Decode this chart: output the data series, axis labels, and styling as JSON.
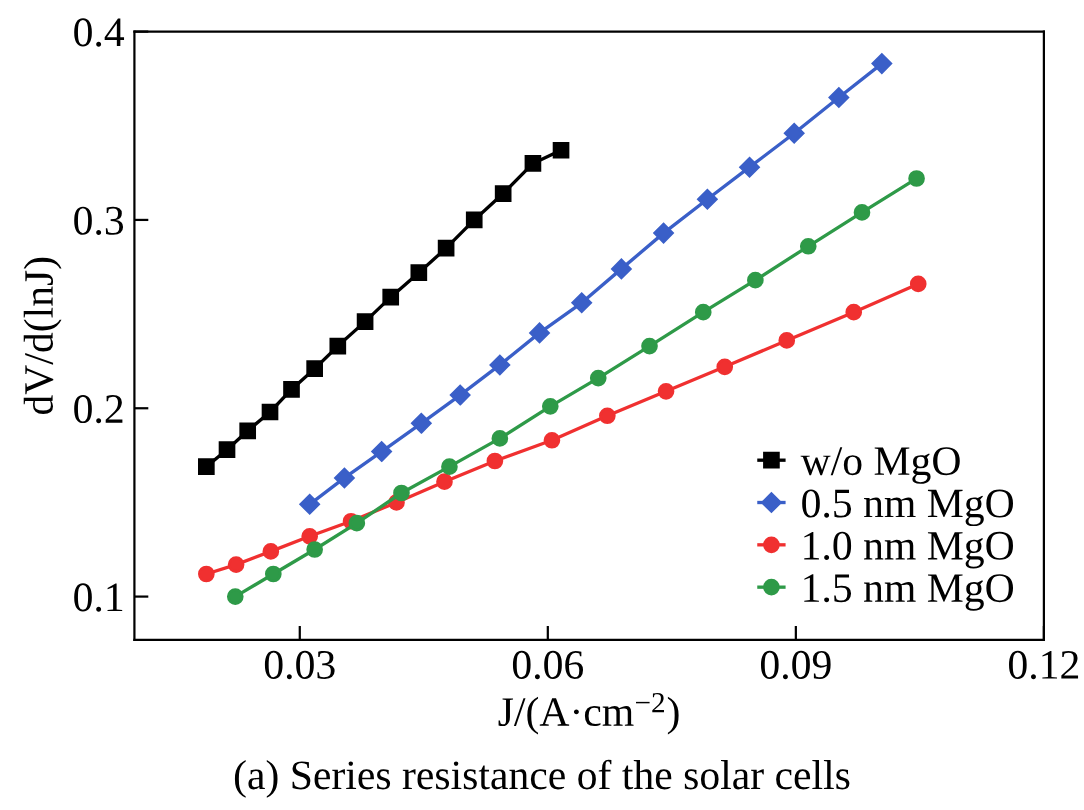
{
  "chart_data": {
    "type": "line",
    "xlabel": "J/(A·cm$^{−2}$)",
    "ylabel": "dV/d(lnJ)",
    "annotations": [
      "(a) Series resistance of the solar cells"
    ],
    "xlim": [
      0.01,
      0.12
    ],
    "ylim": [
      0.077,
      0.4
    ],
    "xticks": [
      0.03,
      0.06,
      0.09,
      0.12
    ],
    "yticks": [
      0.1,
      0.2,
      0.3,
      0.4
    ],
    "grid": false,
    "legend": "bottom right",
    "line_style": "solid",
    "series": [
      {
        "name": "w/o MgO",
        "color": "#000000",
        "marker": "square",
        "x": [
          0.0187,
          0.0212,
          0.0237,
          0.0264,
          0.029,
          0.0318,
          0.0346,
          0.0379,
          0.041,
          0.0444,
          0.0477,
          0.0511,
          0.0546,
          0.0582,
          0.0616
        ],
        "values": [
          0.169,
          0.178,
          0.188,
          0.198,
          0.21,
          0.221,
          0.233,
          0.246,
          0.259,
          0.272,
          0.285,
          0.3,
          0.314,
          0.33,
          0.337
        ]
      },
      {
        "name": "0.5 nm MgO",
        "color": "#3a5fc8",
        "marker": "diamond",
        "x": [
          0.0312,
          0.0354,
          0.0399,
          0.0447,
          0.0494,
          0.0542,
          0.059,
          0.0641,
          0.0689,
          0.074,
          0.0793,
          0.0844,
          0.0898,
          0.0952,
          0.1004
        ],
        "values": [
          0.149,
          0.163,
          0.177,
          0.192,
          0.207,
          0.223,
          0.24,
          0.256,
          0.274,
          0.293,
          0.311,
          0.328,
          0.346,
          0.365,
          0.383
        ]
      },
      {
        "name": "1.0 nm MgO",
        "color": "#f03030",
        "marker": "circle",
        "x": [
          0.0187,
          0.0223,
          0.0265,
          0.0312,
          0.0362,
          0.0417,
          0.0475,
          0.0536,
          0.0605,
          0.0672,
          0.0743,
          0.0814,
          0.0889,
          0.097,
          0.1048
        ],
        "values": [
          0.112,
          0.117,
          0.124,
          0.132,
          0.14,
          0.15,
          0.161,
          0.172,
          0.183,
          0.196,
          0.209,
          0.222,
          0.236,
          0.251,
          0.266
        ]
      },
      {
        "name": "1.5 nm MgO",
        "color": "#2e9a48",
        "marker": "circle",
        "x": [
          0.0222,
          0.0268,
          0.0318,
          0.0369,
          0.0423,
          0.0481,
          0.0542,
          0.0603,
          0.0661,
          0.0723,
          0.0788,
          0.0851,
          0.0915,
          0.098,
          0.1046
        ],
        "values": [
          0.1,
          0.112,
          0.125,
          0.139,
          0.155,
          0.169,
          0.184,
          0.201,
          0.216,
          0.233,
          0.251,
          0.268,
          0.286,
          0.304,
          0.322
        ]
      }
    ]
  }
}
